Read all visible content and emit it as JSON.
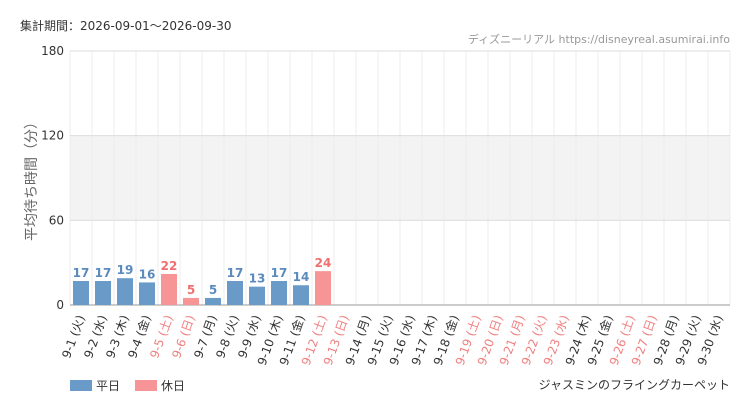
{
  "chart_data": {
    "type": "bar",
    "subtitle": "集計期間：2026-09-01～2026-09-30",
    "source": "ディズニーリアル https://disneyreal.asumirai.info",
    "ylabel": "平均待ち時間（分）",
    "attraction": "ジャスミンのフライングカーペット",
    "categories": [
      "9-1 (火)",
      "9-2 (水)",
      "9-3 (木)",
      "9-4 (金)",
      "9-5 (土)",
      "9-6 (日)",
      "9-7 (月)",
      "9-8 (火)",
      "9-9 (水)",
      "9-10 (木)",
      "9-11 (金)",
      "9-12 (土)",
      "9-13 (日)",
      "9-14 (月)",
      "9-15 (火)",
      "9-16 (水)",
      "9-17 (木)",
      "9-18 (金)",
      "9-19 (土)",
      "9-20 (日)",
      "9-21 (月)",
      "9-22 (火)",
      "9-23 (水)",
      "9-24 (木)",
      "9-25 (金)",
      "9-26 (土)",
      "9-27 (日)",
      "9-28 (月)",
      "9-29 (火)",
      "9-30 (水)"
    ],
    "category_colors": [
      "#333",
      "#333",
      "#333",
      "#333",
      "#f08080",
      "#f08080",
      "#333",
      "#333",
      "#333",
      "#333",
      "#333",
      "#f08080",
      "#f08080",
      "#333",
      "#333",
      "#333",
      "#333",
      "#333",
      "#f08080",
      "#f08080",
      "#f08080",
      "#f08080",
      "#f08080",
      "#333",
      "#333",
      "#f08080",
      "#f08080",
      "#333",
      "#333",
      "#333"
    ],
    "series": [
      {
        "name": "平日",
        "color": "#6a9ac8",
        "label_color": "#5b8bbd",
        "values": [
          17,
          17,
          19,
          16,
          null,
          null,
          5,
          17,
          13,
          17,
          14,
          null,
          null,
          null,
          null,
          null,
          null,
          null,
          null,
          null,
          null,
          null,
          null,
          null,
          null,
          null,
          null,
          null,
          null,
          null
        ]
      },
      {
        "name": "休日",
        "color": "#f79596",
        "label_color": "#f06f6f",
        "values": [
          null,
          null,
          null,
          null,
          22,
          5,
          null,
          null,
          null,
          null,
          null,
          24,
          null,
          null,
          null,
          null,
          null,
          null,
          null,
          null,
          null,
          null,
          null,
          null,
          null,
          null,
          null,
          null,
          null,
          null
        ]
      }
    ],
    "ylim": [
      0,
      180
    ],
    "yticks": [
      0,
      60,
      120,
      180
    ],
    "shaded_range": [
      60,
      120
    ],
    "grid": true
  }
}
